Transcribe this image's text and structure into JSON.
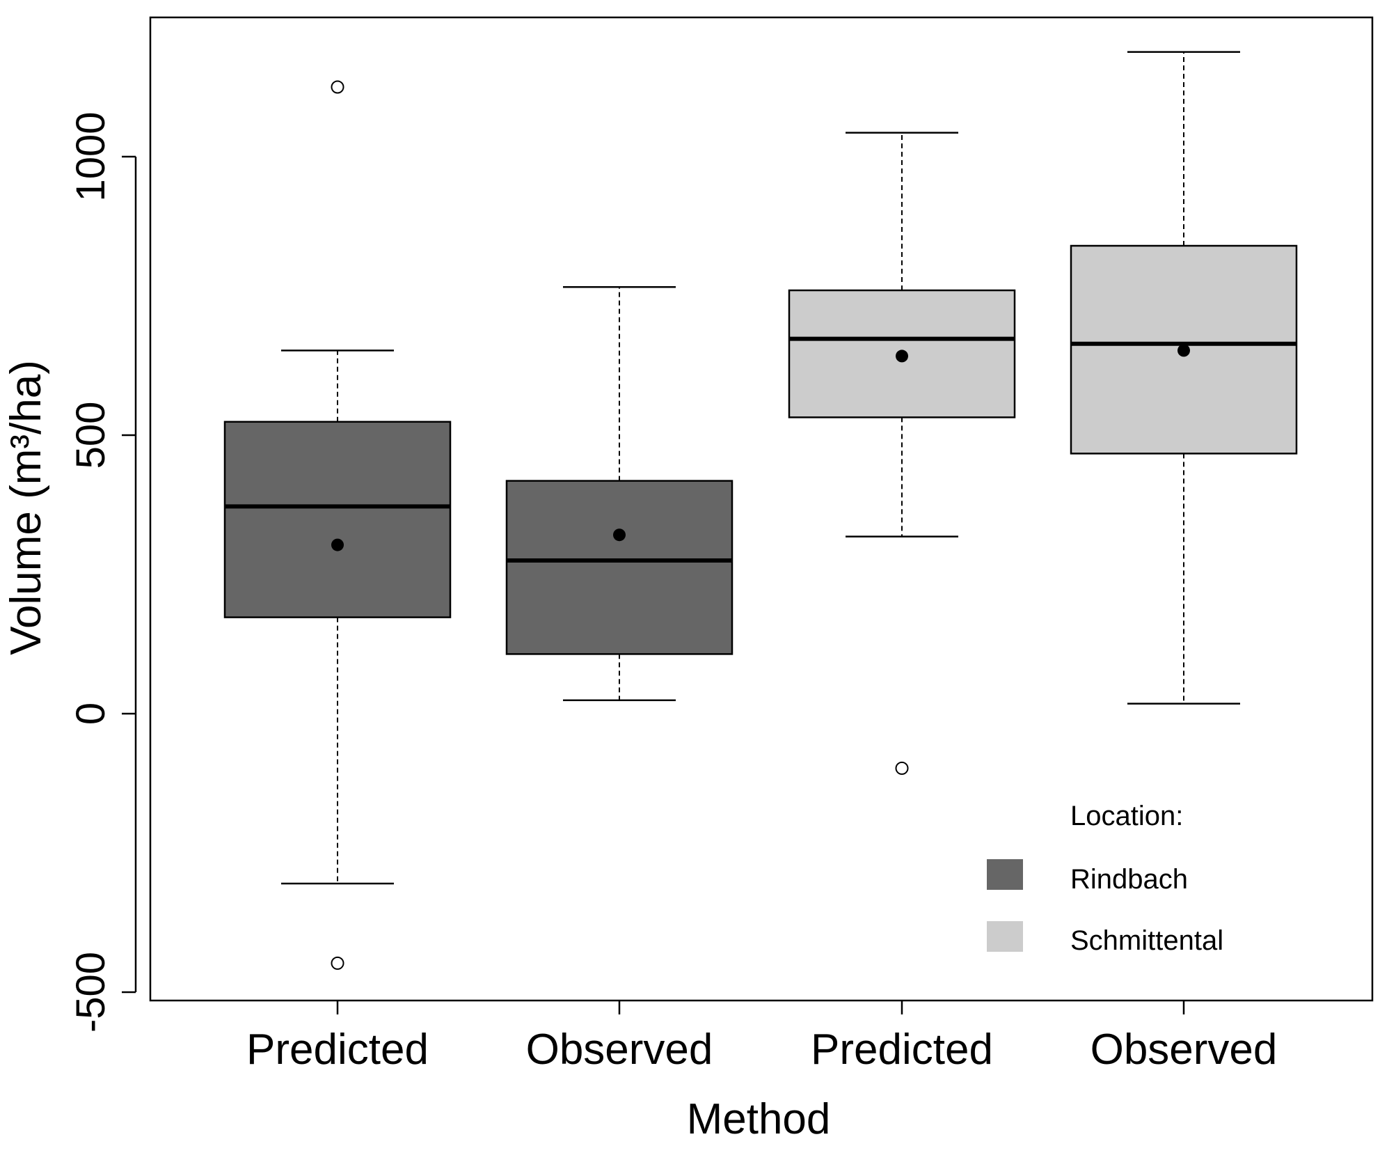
{
  "chart_data": {
    "type": "boxplot",
    "title": "",
    "xlabel": "Method",
    "ylabel": "Volume (m³/ha)",
    "ylim": [
      -500,
      1200
    ],
    "yticks": [
      -500,
      0,
      500,
      1000
    ],
    "ytick_labels": [
      "-500",
      "0",
      "500",
      "1000"
    ],
    "categories": [
      "Predicted",
      "Observed",
      "Predicted",
      "Observed"
    ],
    "legend": {
      "title": "Location:",
      "position": "bottom-right",
      "entries": [
        {
          "label": "Rindbach",
          "color": "#666666"
        },
        {
          "label": "Schmittental",
          "color": "#cccccc"
        }
      ]
    },
    "boxes": [
      {
        "category": "Predicted",
        "group": "Rindbach",
        "whisker_low": -305,
        "q1": 173,
        "median": 372,
        "q3": 524,
        "whisker_high": 652,
        "mean": 303,
        "outliers": [
          1125,
          -448
        ]
      },
      {
        "category": "Observed",
        "group": "Rindbach",
        "whisker_low": 24,
        "q1": 107,
        "median": 275,
        "q3": 418,
        "whisker_high": 766,
        "mean": 321,
        "outliers": []
      },
      {
        "category": "Predicted",
        "group": "Schmittental",
        "whisker_low": 318,
        "q1": 532,
        "median": 673,
        "q3": 760,
        "whisker_high": 1043,
        "mean": 642,
        "outliers": [
          -98
        ]
      },
      {
        "category": "Observed",
        "group": "Schmittental",
        "whisker_low": 18,
        "q1": 467,
        "median": 664,
        "q3": 840,
        "whisker_high": 1188,
        "mean": 652,
        "outliers": []
      }
    ]
  }
}
